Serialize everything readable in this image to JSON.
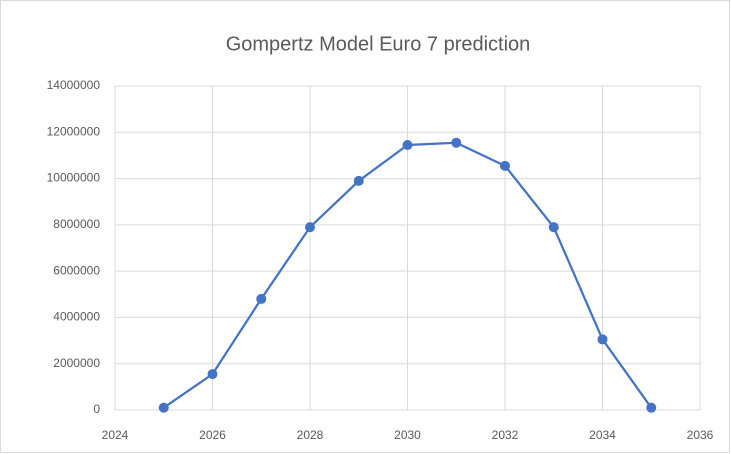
{
  "chart_data": {
    "type": "line",
    "title": "Gompertz Model Euro 7 prediction",
    "x": [
      2025,
      2026,
      2027,
      2028,
      2029,
      2030,
      2031,
      2032,
      2033,
      2034,
      2035
    ],
    "series": [
      {
        "color": "#4472c4",
        "values": [
          100000,
          1550000,
          4800000,
          7900000,
          9900000,
          11450000,
          11550000,
          10550000,
          7900000,
          3050000,
          100000
        ]
      }
    ],
    "xlim": [
      2024,
      2036
    ],
    "xticks": [
      2024,
      2026,
      2028,
      2030,
      2032,
      2034,
      2036
    ],
    "ylim": [
      0,
      14000000
    ],
    "yticks": [
      0,
      2000000,
      4000000,
      6000000,
      8000000,
      10000000,
      12000000,
      14000000
    ],
    "grid": true
  }
}
